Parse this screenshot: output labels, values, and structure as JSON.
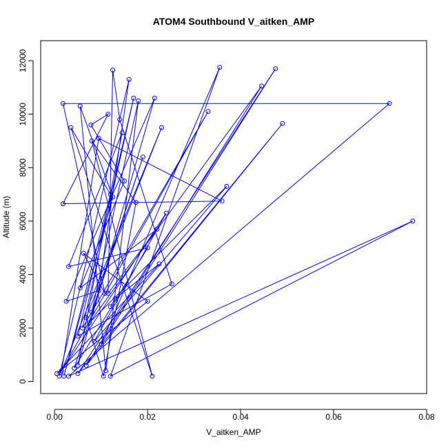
{
  "chart_data": {
    "type": "scatter",
    "title": "ATOM4 Southbound V_aitken_AMP",
    "xlabel": "V_aitken_AMP",
    "ylabel": "Altitude (m)",
    "xlim": [
      -0.003,
      0.08
    ],
    "ylim": [
      -450,
      12750
    ],
    "xticks": [
      0.0,
      0.02,
      0.04,
      0.06,
      0.08
    ],
    "xtick_labels": [
      "0.00",
      "0.02",
      "0.04",
      "0.06",
      "0.08"
    ],
    "yticks": [
      0,
      2000,
      4000,
      6000,
      8000,
      10000,
      12000
    ],
    "ytick_labels": [
      "0",
      "2000",
      "4000",
      "6000",
      "8000",
      "10000",
      "12000"
    ],
    "grid": false,
    "color": "#0000ff",
    "style": "points connected by lines",
    "x": [
      0.001,
      0.016,
      0.0095,
      0.0025,
      0.0215,
      0.005,
      0.0145,
      0.003,
      0.02,
      0.0042,
      0.019,
      0.008,
      0.018,
      0.011,
      0.0055,
      0.0125,
      0.002,
      0.012,
      0.0035,
      0.021,
      0.008,
      0.0175,
      0.0105,
      0.0068,
      0.023,
      0.0015,
      0.0095,
      0.036,
      0.0018,
      0.0115,
      0.0078,
      0.015,
      0.0055,
      0.022,
      0.0115,
      0.0125,
      0.014,
      0.0252,
      0.005,
      0.017,
      0.006,
      0.033,
      0.0013,
      0.024,
      0.0085,
      0.037,
      0.0075,
      0.0445,
      0.0068,
      0.049,
      0.005,
      0.0475,
      0.01,
      0.0355,
      0.012,
      0.077,
      0.003,
      0.072,
      0.0018,
      0.0108,
      0.0062,
      0.02,
      0.0005,
      0.0225,
      0.013,
      0.012
    ],
    "y": [
      200,
      11300,
      3400,
      3000,
      10600,
      600,
      9300,
      4300,
      5000,
      500,
      8400,
      2600,
      10500,
      400,
      10300,
      6900,
      200,
      7000,
      9500,
      200,
      9000,
      6700,
      200,
      2400,
      9500,
      400,
      9100,
      6750,
      6650,
      10000,
      9600,
      7500,
      3500,
      5700,
      3300,
      11650,
      9800,
      3650,
      1700,
      10600,
      2000,
      10100,
      350,
      6300,
      1500,
      7300,
      2200,
      11050,
      600,
      9650,
      300,
      11700,
      1400,
      11750,
      200,
      6000,
      200,
      10400,
      10400,
      3300,
      4800,
      3000,
      300,
      4400,
      3100,
      2800
    ],
    "note": ""
  }
}
